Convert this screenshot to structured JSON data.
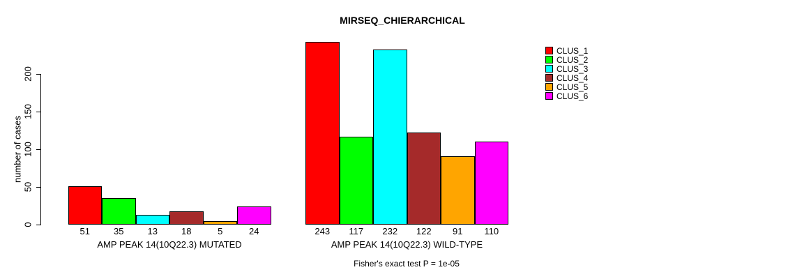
{
  "chart_data": {
    "type": "bar",
    "title": "MIRSEQ_CHIERARCHICAL",
    "ylabel": "number of cases",
    "footnote": "Fisher's exact test P = 1e-05",
    "yticks": [
      0,
      50,
      100,
      150,
      200
    ],
    "ylim": [
      0,
      250
    ],
    "grid": false,
    "legend_position": "right",
    "categories": [
      "AMP PEAK 14(10Q22.3) MUTATED",
      "AMP PEAK 14(10Q22.3) WILD-TYPE"
    ],
    "series": [
      {
        "name": "CLUS_1",
        "color": "#FF0000",
        "values": [
          51,
          243
        ]
      },
      {
        "name": "CLUS_2",
        "color": "#00FF00",
        "values": [
          35,
          117
        ]
      },
      {
        "name": "CLUS_3",
        "color": "#00FFFF",
        "values": [
          13,
          232
        ]
      },
      {
        "name": "CLUS_4",
        "color": "#A52A2A",
        "values": [
          18,
          122
        ]
      },
      {
        "name": "CLUS_5",
        "color": "#FFA500",
        "values": [
          5,
          91
        ]
      },
      {
        "name": "CLUS_6",
        "color": "#FF00FF",
        "values": [
          24,
          110
        ]
      }
    ],
    "bar_value_labels": true,
    "text_color": "#000000",
    "background_color": "#FFFFFF"
  }
}
